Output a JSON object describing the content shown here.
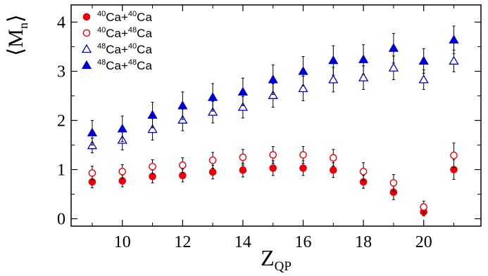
{
  "chart_data": {
    "type": "scatter",
    "xlabel": {
      "main": "Z",
      "sub": "QP"
    },
    "ylabel": {
      "left": "⟨",
      "main": "M",
      "sub": "n",
      "right": "⟩"
    },
    "xlim": [
      8.3,
      21.9
    ],
    "ylim": [
      -0.15,
      4.35
    ],
    "x_ticks": [
      10,
      12,
      14,
      16,
      18,
      20
    ],
    "x_tick_labels": [
      "10",
      "12",
      "14",
      "16",
      "18",
      "20"
    ],
    "y_ticks": [
      0,
      1,
      2,
      3,
      4
    ],
    "y_tick_labels": [
      "0",
      "1",
      "2",
      "3",
      "4"
    ],
    "grid": false,
    "legend_position": "top-left",
    "x": [
      9,
      10,
      11,
      12,
      13,
      14,
      15,
      16,
      17,
      18,
      19,
      20,
      21
    ],
    "series": [
      {
        "name": {
          "a": "40",
          "b": "Ca+",
          "c": "40",
          "d": "Ca"
        },
        "marker": "filled-circle",
        "color": "#e8000b",
        "values": [
          0.75,
          0.77,
          0.86,
          0.88,
          0.95,
          0.99,
          1.03,
          1.03,
          0.99,
          0.75,
          0.54,
          0.14,
          1.0
        ],
        "errors": [
          0.12,
          0.12,
          0.13,
          0.13,
          0.14,
          0.14,
          0.15,
          0.15,
          0.15,
          0.13,
          0.15,
          0.08,
          0.2
        ]
      },
      {
        "name": {
          "a": "40",
          "b": "Ca+",
          "c": "48",
          "d": "Ca"
        },
        "marker": "open-circle",
        "color": "#e8000b",
        "values": [
          0.93,
          0.96,
          1.06,
          1.09,
          1.19,
          1.25,
          1.3,
          1.3,
          1.24,
          0.96,
          0.73,
          0.24,
          1.29
        ],
        "errors": [
          0.14,
          0.14,
          0.14,
          0.15,
          0.16,
          0.16,
          0.17,
          0.17,
          0.17,
          0.18,
          0.17,
          0.12,
          0.25
        ]
      },
      {
        "name": {
          "a": "48",
          "b": "Ca+",
          "c": "40",
          "d": "Ca"
        },
        "marker": "open-triangle",
        "color": "#0000cc",
        "values": [
          1.49,
          1.6,
          1.82,
          2.01,
          2.17,
          2.27,
          2.51,
          2.65,
          2.83,
          2.87,
          3.07,
          2.83,
          3.21
        ],
        "errors": [
          0.15,
          0.2,
          0.22,
          0.22,
          0.22,
          0.22,
          0.24,
          0.25,
          0.25,
          0.24,
          0.24,
          0.2,
          0.22
        ]
      },
      {
        "name": {
          "a": "48",
          "b": "Ca+",
          "c": "48",
          "d": "Ca"
        },
        "marker": "filled-triangle",
        "color": "#0000cc",
        "values": [
          1.75,
          1.83,
          2.11,
          2.3,
          2.47,
          2.58,
          2.83,
          3.0,
          3.22,
          3.24,
          3.47,
          3.21,
          3.64
        ],
        "errors": [
          0.25,
          0.26,
          0.26,
          0.28,
          0.28,
          0.28,
          0.3,
          0.3,
          0.3,
          0.3,
          0.3,
          0.25,
          0.28
        ]
      }
    ]
  }
}
